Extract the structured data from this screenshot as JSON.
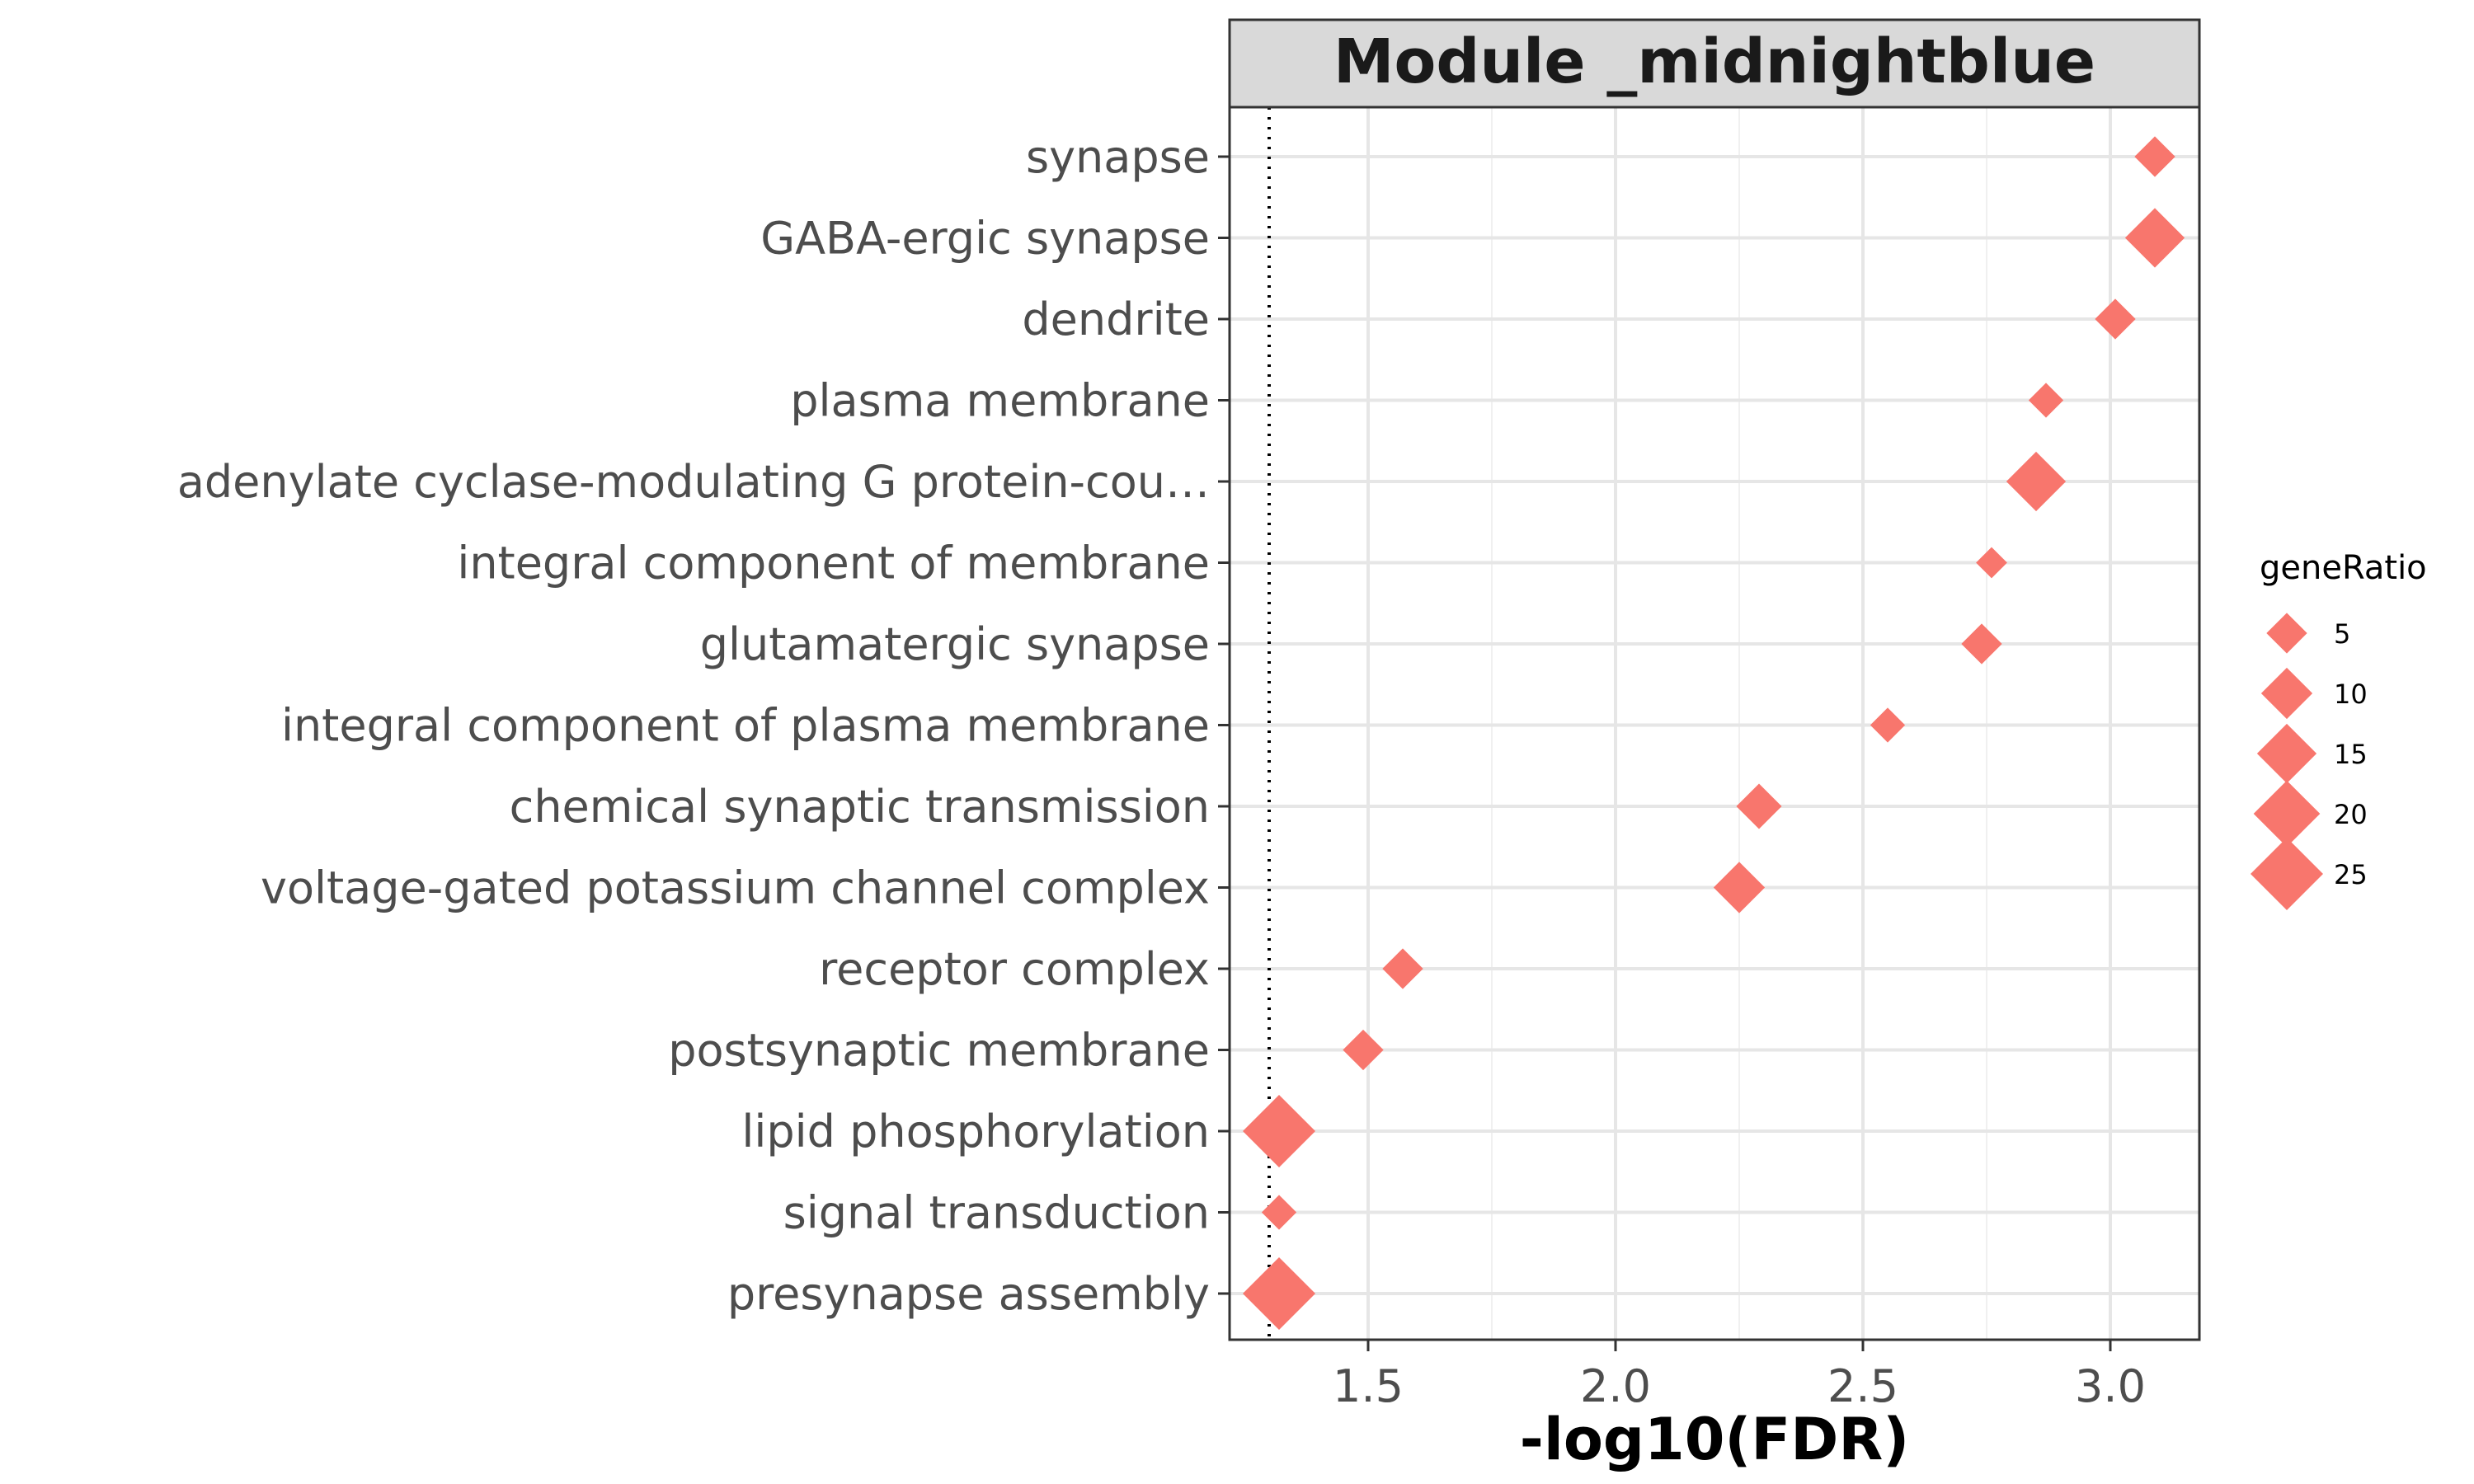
{
  "chart_data": {
    "type": "scatter",
    "title": "Module _midnightblue",
    "xlabel": "-log10(FDR)",
    "ylabel": "",
    "xlim": [
      1.22,
      3.18
    ],
    "x_ticks": [
      "1.5",
      "2.0",
      "2.5",
      "3.0"
    ],
    "x_tick_values": [
      1.5,
      2.0,
      2.5,
      3.0
    ],
    "threshold_line": 1.3,
    "grid": true,
    "marker": "diamond",
    "color": "#F8766D",
    "legend": {
      "title": "geneRatio",
      "position": "right",
      "entries": [
        "5",
        "10",
        "15",
        "20",
        "25"
      ],
      "entry_values": [
        5,
        10,
        15,
        20,
        25
      ]
    },
    "categories": [
      "synapse",
      "GABA-ergic synapse",
      "dendrite",
      "plasma membrane",
      "adenylate cyclase-modulating G protein-cou…",
      "integral component of membrane",
      "glutamatergic synapse",
      "integral component of plasma membrane",
      "chemical synaptic transmission",
      "voltage-gated potassium channel complex",
      "receptor complex",
      "postsynaptic membrane",
      "lipid phosphorylation",
      "signal transduction",
      "presynapse assembly"
    ],
    "x": [
      3.09,
      3.09,
      3.01,
      2.87,
      2.85,
      2.76,
      2.74,
      2.55,
      2.29,
      2.25,
      1.57,
      1.49,
      1.32,
      1.32,
      1.32
    ],
    "size": [
      5,
      15,
      5,
      3,
      15,
      2,
      5,
      3,
      7,
      10,
      5,
      5,
      25,
      3,
      25
    ]
  }
}
